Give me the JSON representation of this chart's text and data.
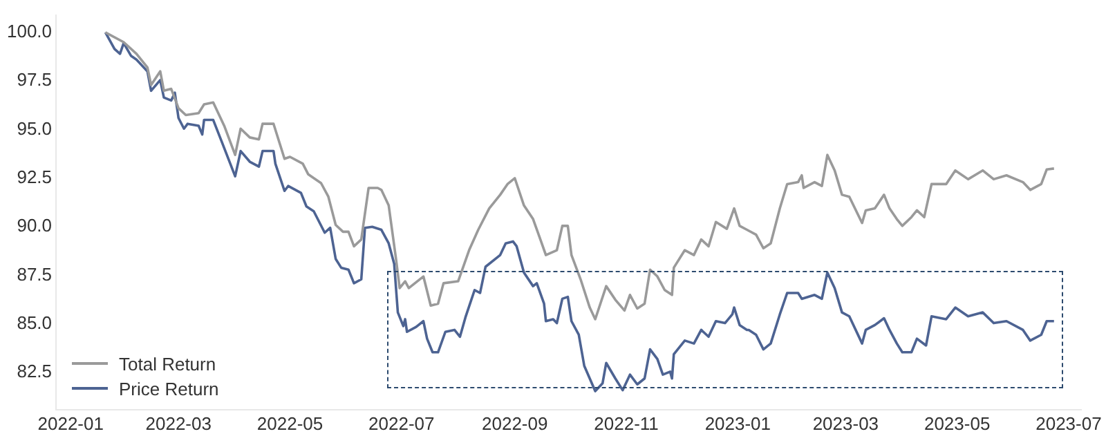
{
  "chart_data": {
    "type": "line",
    "legend": "bottom left",
    "grid": false,
    "line_style": "solid",
    "marker": "none",
    "xlim": [
      "2021-12-24",
      "2023-07-08"
    ],
    "ylim": [
      80.6,
      100.9
    ],
    "xticks": [
      "2022-01",
      "2022-03",
      "2022-05",
      "2022-07",
      "2022-09",
      "2022-11",
      "2023-01",
      "2023-03",
      "2023-05",
      "2023-07"
    ],
    "yticks": [
      {
        "value": 82.5,
        "label": "82.5"
      },
      {
        "value": 85,
        "label": "85.0"
      },
      {
        "value": 87.5,
        "label": "87.5"
      },
      {
        "value": 90,
        "label": "90.0"
      },
      {
        "value": 92.5,
        "label": "92.5"
      },
      {
        "value": 95,
        "label": "95.0"
      },
      {
        "value": 97.5,
        "label": "97.5"
      },
      {
        "value": 100,
        "label": "100.0"
      }
    ],
    "series": [
      {
        "name": "Total Return",
        "color": "#9a9a9a",
        "x": [
          "2022-01-20",
          "2022-01-30",
          "2022-02-06",
          "2022-02-12",
          "2022-02-14",
          "2022-02-19",
          "2022-02-21",
          "2022-02-25",
          "2022-03-01",
          "2022-03-05",
          "2022-03-12",
          "2022-03-15",
          "2022-03-20",
          "2022-03-26",
          "2022-04-01",
          "2022-04-04",
          "2022-04-09",
          "2022-04-14",
          "2022-04-16",
          "2022-04-22",
          "2022-04-28",
          "2022-05-01",
          "2022-05-08",
          "2022-05-11",
          "2022-05-18",
          "2022-05-22",
          "2022-05-26",
          "2022-05-30",
          "2022-06-02",
          "2022-06-05",
          "2022-06-09",
          "2022-06-13",
          "2022-06-18",
          "2022-06-20",
          "2022-06-24",
          "2022-06-28",
          "2022-06-30",
          "2022-07-03",
          "2022-07-05",
          "2022-07-13",
          "2022-07-17",
          "2022-07-21",
          "2022-07-24",
          "2022-08-01",
          "2022-08-07",
          "2022-08-12",
          "2022-08-18",
          "2022-08-24",
          "2022-08-28",
          "2022-09-01",
          "2022-09-06",
          "2022-09-11",
          "2022-09-15",
          "2022-09-18",
          "2022-09-24",
          "2022-09-27",
          "2022-09-30",
          "2022-10-02",
          "2022-10-07",
          "2022-10-12",
          "2022-10-15",
          "2022-10-21",
          "2022-10-26",
          "2022-10-31",
          "2022-11-03",
          "2022-11-07",
          "2022-11-11",
          "2022-11-14",
          "2022-11-18",
          "2022-11-22",
          "2022-11-26",
          "2022-11-27",
          "2022-12-03",
          "2022-12-08",
          "2022-12-12",
          "2022-12-16",
          "2022-12-20",
          "2022-12-26",
          "2022-12-30",
          "2023-01-02",
          "2023-01-06",
          "2023-01-11",
          "2023-01-15",
          "2023-01-19",
          "2023-01-24",
          "2023-01-28",
          "2023-02-03",
          "2023-02-05",
          "2023-02-06",
          "2023-02-12",
          "2023-02-16",
          "2023-02-19",
          "2023-02-23",
          "2023-02-27",
          "2023-03-03",
          "2023-03-10",
          "2023-03-12",
          "2023-03-17",
          "2023-03-22",
          "2023-03-25",
          "2023-03-29",
          "2023-04-01",
          "2023-04-06",
          "2023-04-09",
          "2023-04-13",
          "2023-04-17",
          "2023-04-25",
          "2023-04-30",
          "2023-05-07",
          "2023-05-15",
          "2023-05-21",
          "2023-05-28",
          "2023-06-06",
          "2023-06-10",
          "2023-06-16",
          "2023-06-19",
          "2023-06-23"
        ],
        "values": [
          100.0,
          99.5,
          98.9,
          98.2,
          97.3,
          98.0,
          97.0,
          97.1,
          96.1,
          95.75,
          95.85,
          96.3,
          96.4,
          95.2,
          93.7,
          95.05,
          94.6,
          94.5,
          95.3,
          95.3,
          93.5,
          93.6,
          93.25,
          92.7,
          92.25,
          91.55,
          90.1,
          89.75,
          89.75,
          89.0,
          89.35,
          92.0,
          92.0,
          91.9,
          91.1,
          88.35,
          86.85,
          87.2,
          86.85,
          87.45,
          85.95,
          86.05,
          87.1,
          87.2,
          88.8,
          89.85,
          90.95,
          91.65,
          92.2,
          92.5,
          91.1,
          90.4,
          89.35,
          88.55,
          88.8,
          90.05,
          90.05,
          88.55,
          87.3,
          85.85,
          85.25,
          86.95,
          86.25,
          85.7,
          86.5,
          85.8,
          86.05,
          87.8,
          87.45,
          86.75,
          86.5,
          87.9,
          88.8,
          88.55,
          89.35,
          89.0,
          90.25,
          89.9,
          90.95,
          90.05,
          89.85,
          89.6,
          88.9,
          89.15,
          90.95,
          92.2,
          92.3,
          92.65,
          92.0,
          92.3,
          92.1,
          93.7,
          92.9,
          91.65,
          91.55,
          90.2,
          90.85,
          90.95,
          91.65,
          90.95,
          90.4,
          90.05,
          90.5,
          90.85,
          90.5,
          92.2,
          92.2,
          92.9,
          92.45,
          92.9,
          92.45,
          92.65,
          92.3,
          91.9,
          92.2,
          92.95,
          93.0
        ]
      },
      {
        "name": "Price Return",
        "color": "#4d6392",
        "x": [
          "2022-01-20",
          "2022-01-25",
          "2022-01-28",
          "2022-01-30",
          "2022-02-03",
          "2022-02-06",
          "2022-02-12",
          "2022-02-14",
          "2022-02-19",
          "2022-02-21",
          "2022-02-25",
          "2022-02-27",
          "2022-03-01",
          "2022-03-04",
          "2022-03-06",
          "2022-03-12",
          "2022-03-14",
          "2022-03-15",
          "2022-03-20",
          "2022-03-25",
          "2022-04-01",
          "2022-04-04",
          "2022-04-09",
          "2022-04-14",
          "2022-04-16",
          "2022-04-22",
          "2022-04-23",
          "2022-04-28",
          "2022-04-30",
          "2022-05-07",
          "2022-05-10",
          "2022-05-14",
          "2022-05-20",
          "2022-05-23",
          "2022-05-26",
          "2022-05-29",
          "2022-06-02",
          "2022-06-05",
          "2022-06-09",
          "2022-06-11",
          "2022-06-15",
          "2022-06-20",
          "2022-06-24",
          "2022-06-27",
          "2022-06-29",
          "2022-07-02",
          "2022-07-03",
          "2022-07-04",
          "2022-07-09",
          "2022-07-13",
          "2022-07-15",
          "2022-07-18",
          "2022-07-21",
          "2022-07-25",
          "2022-07-30",
          "2022-08-02",
          "2022-08-05",
          "2022-08-10",
          "2022-08-13",
          "2022-08-16",
          "2022-08-24",
          "2022-08-27",
          "2022-08-31",
          "2022-09-02",
          "2022-09-06",
          "2022-09-11",
          "2022-09-13",
          "2022-09-17",
          "2022-09-18",
          "2022-09-22",
          "2022-09-24",
          "2022-09-27",
          "2022-09-30",
          "2022-10-02",
          "2022-10-06",
          "2022-10-09",
          "2022-10-15",
          "2022-10-19",
          "2022-10-21",
          "2022-10-26",
          "2022-10-30",
          "2022-11-03",
          "2022-11-07",
          "2022-11-11",
          "2022-11-14",
          "2022-11-18",
          "2022-11-21",
          "2022-11-25",
          "2022-11-26",
          "2022-11-27",
          "2022-12-03",
          "2022-12-08",
          "2022-12-12",
          "2022-12-16",
          "2022-12-20",
          "2022-12-25",
          "2022-12-29",
          "2022-12-30",
          "2023-01-02",
          "2023-01-06",
          "2023-01-07",
          "2023-01-11",
          "2023-01-15",
          "2023-01-19",
          "2023-01-24",
          "2023-01-28",
          "2023-02-03",
          "2023-02-05",
          "2023-02-12",
          "2023-02-16",
          "2023-02-19",
          "2023-02-23",
          "2023-02-27",
          "2023-03-03",
          "2023-03-10",
          "2023-03-12",
          "2023-03-17",
          "2023-03-22",
          "2023-03-25",
          "2023-03-29",
          "2023-04-01",
          "2023-04-06",
          "2023-04-09",
          "2023-04-14",
          "2023-04-17",
          "2023-04-25",
          "2023-04-30",
          "2023-05-07",
          "2023-05-15",
          "2023-05-21",
          "2023-05-28",
          "2023-06-06",
          "2023-06-10",
          "2023-06-16",
          "2023-06-19",
          "2023-06-23"
        ],
        "values": [
          100.0,
          99.15,
          98.9,
          99.45,
          98.8,
          98.6,
          98.0,
          97.0,
          97.55,
          96.65,
          96.5,
          96.9,
          95.6,
          95.05,
          95.3,
          95.2,
          94.75,
          95.5,
          95.5,
          94.3,
          92.6,
          93.9,
          93.35,
          93.1,
          93.9,
          93.9,
          93.25,
          91.85,
          92.1,
          91.75,
          91.05,
          90.8,
          89.7,
          89.95,
          88.35,
          87.9,
          87.8,
          87.1,
          87.3,
          89.95,
          90.0,
          89.85,
          89.15,
          88.1,
          85.6,
          84.9,
          85.25,
          84.6,
          84.85,
          85.15,
          84.25,
          83.55,
          83.55,
          84.6,
          84.7,
          84.35,
          85.35,
          86.75,
          86.6,
          87.95,
          88.55,
          89.15,
          89.25,
          89.0,
          87.65,
          86.95,
          87.1,
          86.05,
          85.15,
          85.25,
          85.05,
          86.3,
          86.4,
          85.15,
          84.45,
          82.85,
          81.55,
          81.95,
          83.0,
          82.2,
          81.6,
          82.4,
          81.9,
          82.2,
          83.7,
          83.2,
          82.4,
          82.55,
          82.2,
          83.45,
          84.15,
          84.0,
          84.7,
          84.35,
          85.15,
          85.05,
          85.5,
          85.85,
          84.95,
          84.7,
          84.7,
          84.45,
          83.7,
          84.0,
          85.5,
          86.6,
          86.6,
          86.3,
          86.5,
          86.3,
          87.65,
          86.85,
          85.6,
          85.4,
          84.0,
          84.7,
          84.95,
          85.3,
          84.7,
          84.0,
          83.55,
          83.55,
          84.25,
          83.9,
          85.4,
          85.25,
          85.85,
          85.4,
          85.6,
          85.05,
          85.15,
          84.7,
          84.15,
          84.45,
          85.15,
          85.15
        ]
      }
    ]
  }
}
